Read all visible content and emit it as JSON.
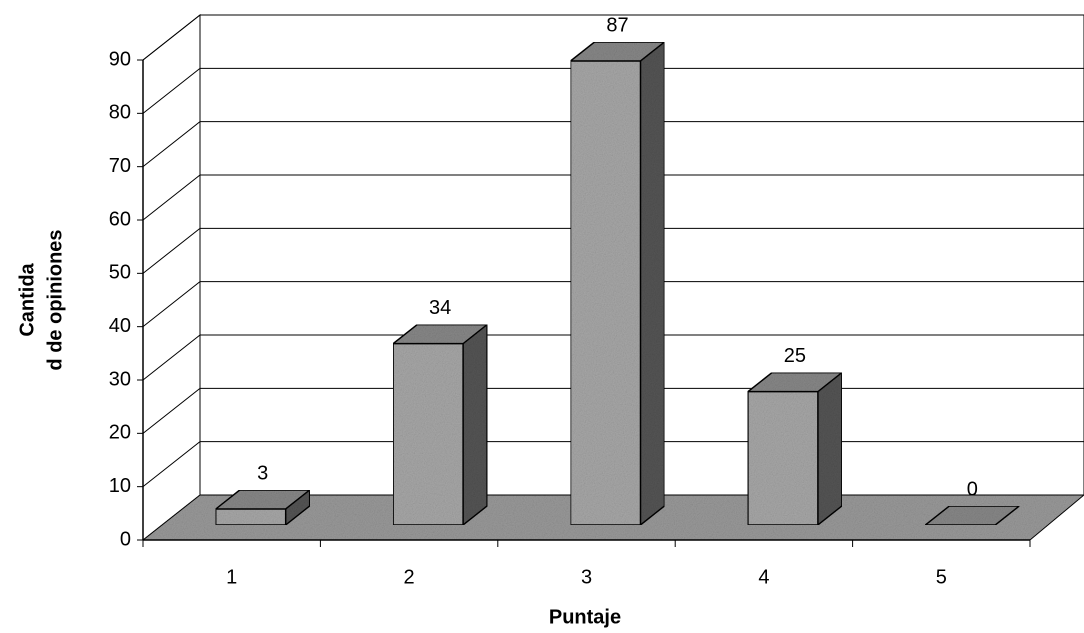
{
  "chart_data": {
    "type": "bar3d",
    "x_label": "Puntaje",
    "y_label": [
      "Cantida",
      "d de opiniones"
    ],
    "categories": [
      "1",
      "2",
      "3",
      "4",
      "5"
    ],
    "values": [
      3,
      34,
      87,
      25,
      0
    ],
    "color": "#a8a8a8",
    "ylim": [
      0,
      90
    ],
    "yticks": [
      0,
      10,
      20,
      30,
      40,
      50,
      60,
      70,
      80,
      90
    ],
    "grid": true
  }
}
